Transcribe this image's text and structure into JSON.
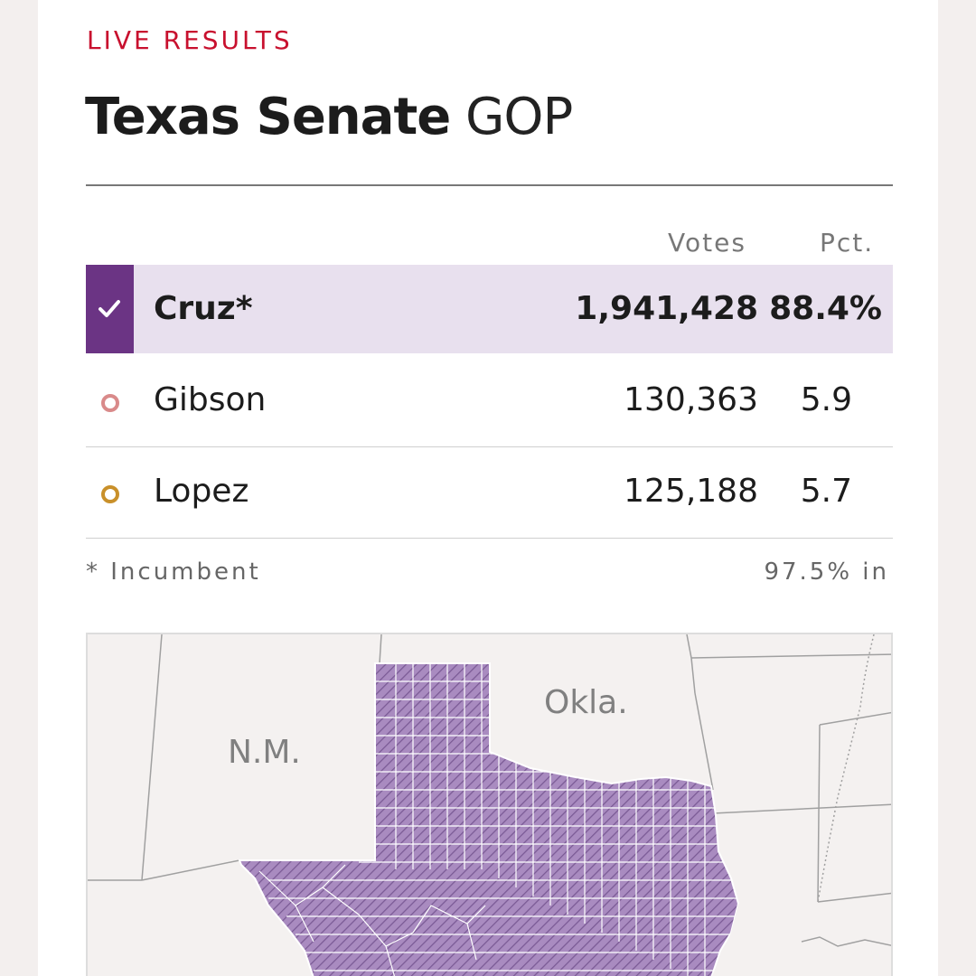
{
  "header": {
    "kicker": "LIVE RESULTS",
    "title_bold": "Texas Senate",
    "title_light": "GOP"
  },
  "table": {
    "col_votes": "Votes",
    "col_pct": "Pct.",
    "rows": [
      {
        "name": "Cruz*",
        "votes": "1,941,428",
        "pct": "88.4%",
        "winner": true,
        "color": "#6b3484"
      },
      {
        "name": "Gibson",
        "votes": "130,363",
        "pct": "5.9",
        "winner": false,
        "color": "#d98a8a"
      },
      {
        "name": "Lopez",
        "votes": "125,188",
        "pct": "5.7",
        "winner": false,
        "color": "#c9902a"
      }
    ]
  },
  "footer": {
    "note": "* Incumbent",
    "reporting": "97.5% in"
  },
  "map": {
    "labels": {
      "nm": "N.M.",
      "ok": "Okla."
    },
    "fill_color": "#a98bc0",
    "hatch_color": "#7a5a95",
    "boundary_color": "#ffffff",
    "state_line_color": "#a0a0a0"
  },
  "icons": {
    "winner": "checkmark-icon",
    "candidate": "circle-outline-icon"
  }
}
